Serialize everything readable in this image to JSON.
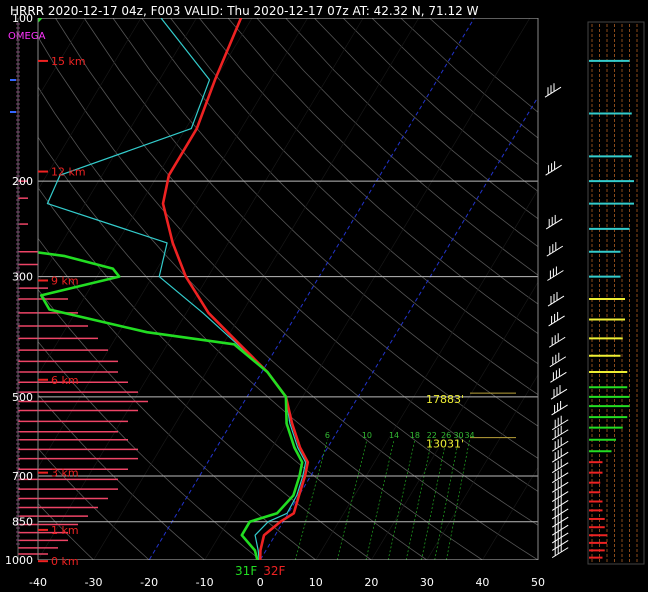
{
  "title": "HRRR 2020-12-17 04z, F003  VALID: Thu 2020-12-17 07z  AT: 42.32 N, 71.12 W",
  "omega_label": "OMEGA",
  "colors": {
    "temperature": "#ee2222",
    "dewpoint": "#22dd22",
    "wetbulb": "#33cccc",
    "isobar": "#bbbbbb",
    "dry_adiabat": "#555555",
    "freezing_isotherm": "#2233cc",
    "mixing_ratio": "#22aa22",
    "height_marker": "#ee2222",
    "level_marker": "#eeee33",
    "omega_bar": "#ee4466"
  },
  "chart_data": {
    "type": "skew-t",
    "xlim": [
      -40,
      50
    ],
    "ylim": [
      1000,
      100
    ],
    "x_ticks": [
      "-40",
      "-30",
      "-20",
      "-10",
      "0",
      "10",
      "20",
      "30",
      "40",
      "50"
    ],
    "pressure_ticks": [
      {
        "p": 100,
        "label": "100"
      },
      {
        "p": 200,
        "label": "200"
      },
      {
        "p": 300,
        "label": "300"
      },
      {
        "p": 500,
        "label": "500"
      },
      {
        "p": 700,
        "label": "700"
      },
      {
        "p": 850,
        "label": "850"
      },
      {
        "p": 1000,
        "label": "1000"
      }
    ],
    "height_markers": [
      {
        "p": 120,
        "label": "15 km"
      },
      {
        "p": 192,
        "label": "12 km"
      },
      {
        "p": 305,
        "label": "9 km"
      },
      {
        "p": 465,
        "label": "6 km"
      },
      {
        "p": 690,
        "label": "3 km"
      },
      {
        "p": 880,
        "label": "1 km"
      },
      {
        "p": 1005,
        "label": "0 km"
      }
    ],
    "level_labels": [
      {
        "p": 505,
        "label": "17883'"
      },
      {
        "p": 610,
        "label": "13031'"
      }
    ],
    "mixing_ratio_labels": [
      "6",
      "10",
      "14",
      "18",
      "22",
      "26",
      "30",
      "34"
    ],
    "mixing_ratio_values": [
      6,
      10,
      14,
      18,
      22,
      26,
      30,
      34
    ],
    "surface_labels": {
      "dewpoint": "31F",
      "temperature": "32F"
    },
    "temperature": [
      {
        "p": 100,
        "t": -62
      },
      {
        "p": 130,
        "t": -60
      },
      {
        "p": 160,
        "t": -58
      },
      {
        "p": 195,
        "t": -58
      },
      {
        "p": 220,
        "t": -56
      },
      {
        "p": 260,
        "t": -50
      },
      {
        "p": 300,
        "t": -44
      },
      {
        "p": 350,
        "t": -36
      },
      {
        "p": 400,
        "t": -27
      },
      {
        "p": 450,
        "t": -19
      },
      {
        "p": 500,
        "t": -13
      },
      {
        "p": 560,
        "t": -9
      },
      {
        "p": 620,
        "t": -5
      },
      {
        "p": 660,
        "t": -2
      },
      {
        "p": 700,
        "t": -1
      },
      {
        "p": 760,
        "t": 0
      },
      {
        "p": 820,
        "t": 1
      },
      {
        "p": 850,
        "t": -0.5
      },
      {
        "p": 900,
        "t": -2
      },
      {
        "p": 960,
        "t": -1
      },
      {
        "p": 1000,
        "t": 0
      }
    ],
    "dewpoint": [
      {
        "p": 100,
        "t": -98
      },
      {
        "p": 140,
        "t": -103
      },
      {
        "p": 195,
        "t": -107
      },
      {
        "p": 220,
        "t": -108
      },
      {
        "p": 255,
        "t": -93
      },
      {
        "p": 275,
        "t": -68
      },
      {
        "p": 290,
        "t": -58
      },
      {
        "p": 300,
        "t": -56
      },
      {
        "p": 325,
        "t": -68
      },
      {
        "p": 345,
        "t": -65
      },
      {
        "p": 380,
        "t": -45
      },
      {
        "p": 400,
        "t": -28
      },
      {
        "p": 450,
        "t": -19
      },
      {
        "p": 500,
        "t": -13
      },
      {
        "p": 560,
        "t": -10
      },
      {
        "p": 620,
        "t": -6
      },
      {
        "p": 660,
        "t": -3
      },
      {
        "p": 700,
        "t": -2
      },
      {
        "p": 760,
        "t": -1
      },
      {
        "p": 820,
        "t": -2
      },
      {
        "p": 850,
        "t": -6
      },
      {
        "p": 900,
        "t": -6
      },
      {
        "p": 960,
        "t": -2
      },
      {
        "p": 1000,
        "t": -0.5
      }
    ],
    "omega": [
      {
        "p": 200,
        "v": 1
      },
      {
        "p": 215,
        "v": 1
      },
      {
        "p": 240,
        "v": 1
      },
      {
        "p": 270,
        "v": 2
      },
      {
        "p": 285,
        "v": 2
      },
      {
        "p": 315,
        "v": 3
      },
      {
        "p": 330,
        "v": 5
      },
      {
        "p": 350,
        "v": 6
      },
      {
        "p": 370,
        "v": 7
      },
      {
        "p": 390,
        "v": 8
      },
      {
        "p": 410,
        "v": 9
      },
      {
        "p": 430,
        "v": 10
      },
      {
        "p": 450,
        "v": 10
      },
      {
        "p": 470,
        "v": 11
      },
      {
        "p": 490,
        "v": 12
      },
      {
        "p": 510,
        "v": 13
      },
      {
        "p": 530,
        "v": 12
      },
      {
        "p": 555,
        "v": 11
      },
      {
        "p": 580,
        "v": 10
      },
      {
        "p": 600,
        "v": 11
      },
      {
        "p": 625,
        "v": 12
      },
      {
        "p": 650,
        "v": 12
      },
      {
        "p": 680,
        "v": 11
      },
      {
        "p": 710,
        "v": 10
      },
      {
        "p": 740,
        "v": 10
      },
      {
        "p": 770,
        "v": 9
      },
      {
        "p": 800,
        "v": 8
      },
      {
        "p": 830,
        "v": 7
      },
      {
        "p": 860,
        "v": 6
      },
      {
        "p": 890,
        "v": 5
      },
      {
        "p": 920,
        "v": 5
      },
      {
        "p": 950,
        "v": 4
      },
      {
        "p": 975,
        "v": 3
      }
    ],
    "omega_blue": [
      80,
      112
    ],
    "side_bars": [
      {
        "p": 120,
        "v": 0.9,
        "color": "#33cccc"
      },
      {
        "p": 150,
        "v": 0.95,
        "color": "#33cccc"
      },
      {
        "p": 180,
        "v": 0.95,
        "color": "#33cccc"
      },
      {
        "p": 200,
        "v": 1.0,
        "color": "#33cccc"
      },
      {
        "p": 220,
        "v": 1.0,
        "color": "#33cccc"
      },
      {
        "p": 245,
        "v": 0.9,
        "color": "#33cccc"
      },
      {
        "p": 270,
        "v": 0.7,
        "color": "#33cccc"
      },
      {
        "p": 300,
        "v": 0.7,
        "color": "#33cccc"
      },
      {
        "p": 330,
        "v": 0.8,
        "color": "#eeee33"
      },
      {
        "p": 360,
        "v": 0.8,
        "color": "#eeee33"
      },
      {
        "p": 390,
        "v": 0.75,
        "color": "#eeee33"
      },
      {
        "p": 420,
        "v": 0.7,
        "color": "#eeee33"
      },
      {
        "p": 450,
        "v": 0.85,
        "color": "#eeee33"
      },
      {
        "p": 480,
        "v": 0.85,
        "color": "#22dd22"
      },
      {
        "p": 500,
        "v": 0.9,
        "color": "#22dd22"
      },
      {
        "p": 520,
        "v": 0.9,
        "color": "#22dd22"
      },
      {
        "p": 545,
        "v": 0.85,
        "color": "#22dd22"
      },
      {
        "p": 570,
        "v": 0.75,
        "color": "#22dd22"
      },
      {
        "p": 600,
        "v": 0.6,
        "color": "#22dd22"
      },
      {
        "p": 630,
        "v": 0.5,
        "color": "#22dd22"
      },
      {
        "p": 660,
        "v": 0.3,
        "color": "#ee2222"
      },
      {
        "p": 690,
        "v": 0.3,
        "color": "#ee2222"
      },
      {
        "p": 720,
        "v": 0.25,
        "color": "#ee2222"
      },
      {
        "p": 750,
        "v": 0.25,
        "color": "#ee2222"
      },
      {
        "p": 780,
        "v": 0.3,
        "color": "#ee2222"
      },
      {
        "p": 810,
        "v": 0.3,
        "color": "#ee2222"
      },
      {
        "p": 840,
        "v": 0.35,
        "color": "#ee2222"
      },
      {
        "p": 870,
        "v": 0.35,
        "color": "#ee2222"
      },
      {
        "p": 900,
        "v": 0.4,
        "color": "#ee2222"
      },
      {
        "p": 930,
        "v": 0.4,
        "color": "#ee2222"
      },
      {
        "p": 960,
        "v": 0.35,
        "color": "#ee2222"
      },
      {
        "p": 990,
        "v": 0.3,
        "color": "#ee2222"
      }
    ],
    "wind_barbs_p": [
      140,
      195,
      245,
      275,
      305,
      340,
      370,
      405,
      440,
      470,
      505,
      540,
      575,
      600,
      630,
      660,
      690,
      720,
      750,
      780,
      810,
      840,
      870,
      900,
      930,
      960,
      990
    ]
  }
}
